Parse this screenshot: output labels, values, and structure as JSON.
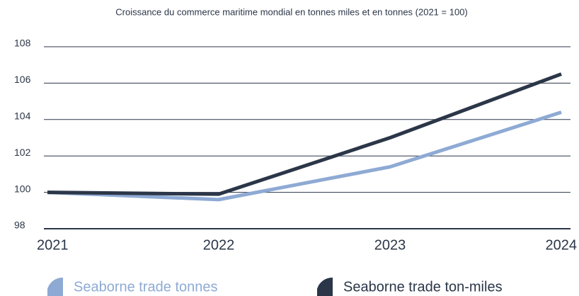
{
  "chart_data": {
    "type": "line",
    "title": "Croissance du commerce maritime mondial en tonnes miles et en tonnes (2021 = 100)",
    "categories": [
      "2021",
      "2022",
      "2023",
      "2024"
    ],
    "series": [
      {
        "name": "Seaborne trade tonnes",
        "color": "#8eaad4",
        "values": [
          100,
          99.6,
          101.4,
          104.4
        ]
      },
      {
        "name": "Seaborne trade ton-miles",
        "color": "#2b3648",
        "values": [
          100,
          99.9,
          103,
          106.5
        ]
      }
    ],
    "ylim": [
      98,
      108
    ],
    "yticks": [
      98,
      100,
      102,
      104,
      106,
      108
    ],
    "grid": true
  }
}
